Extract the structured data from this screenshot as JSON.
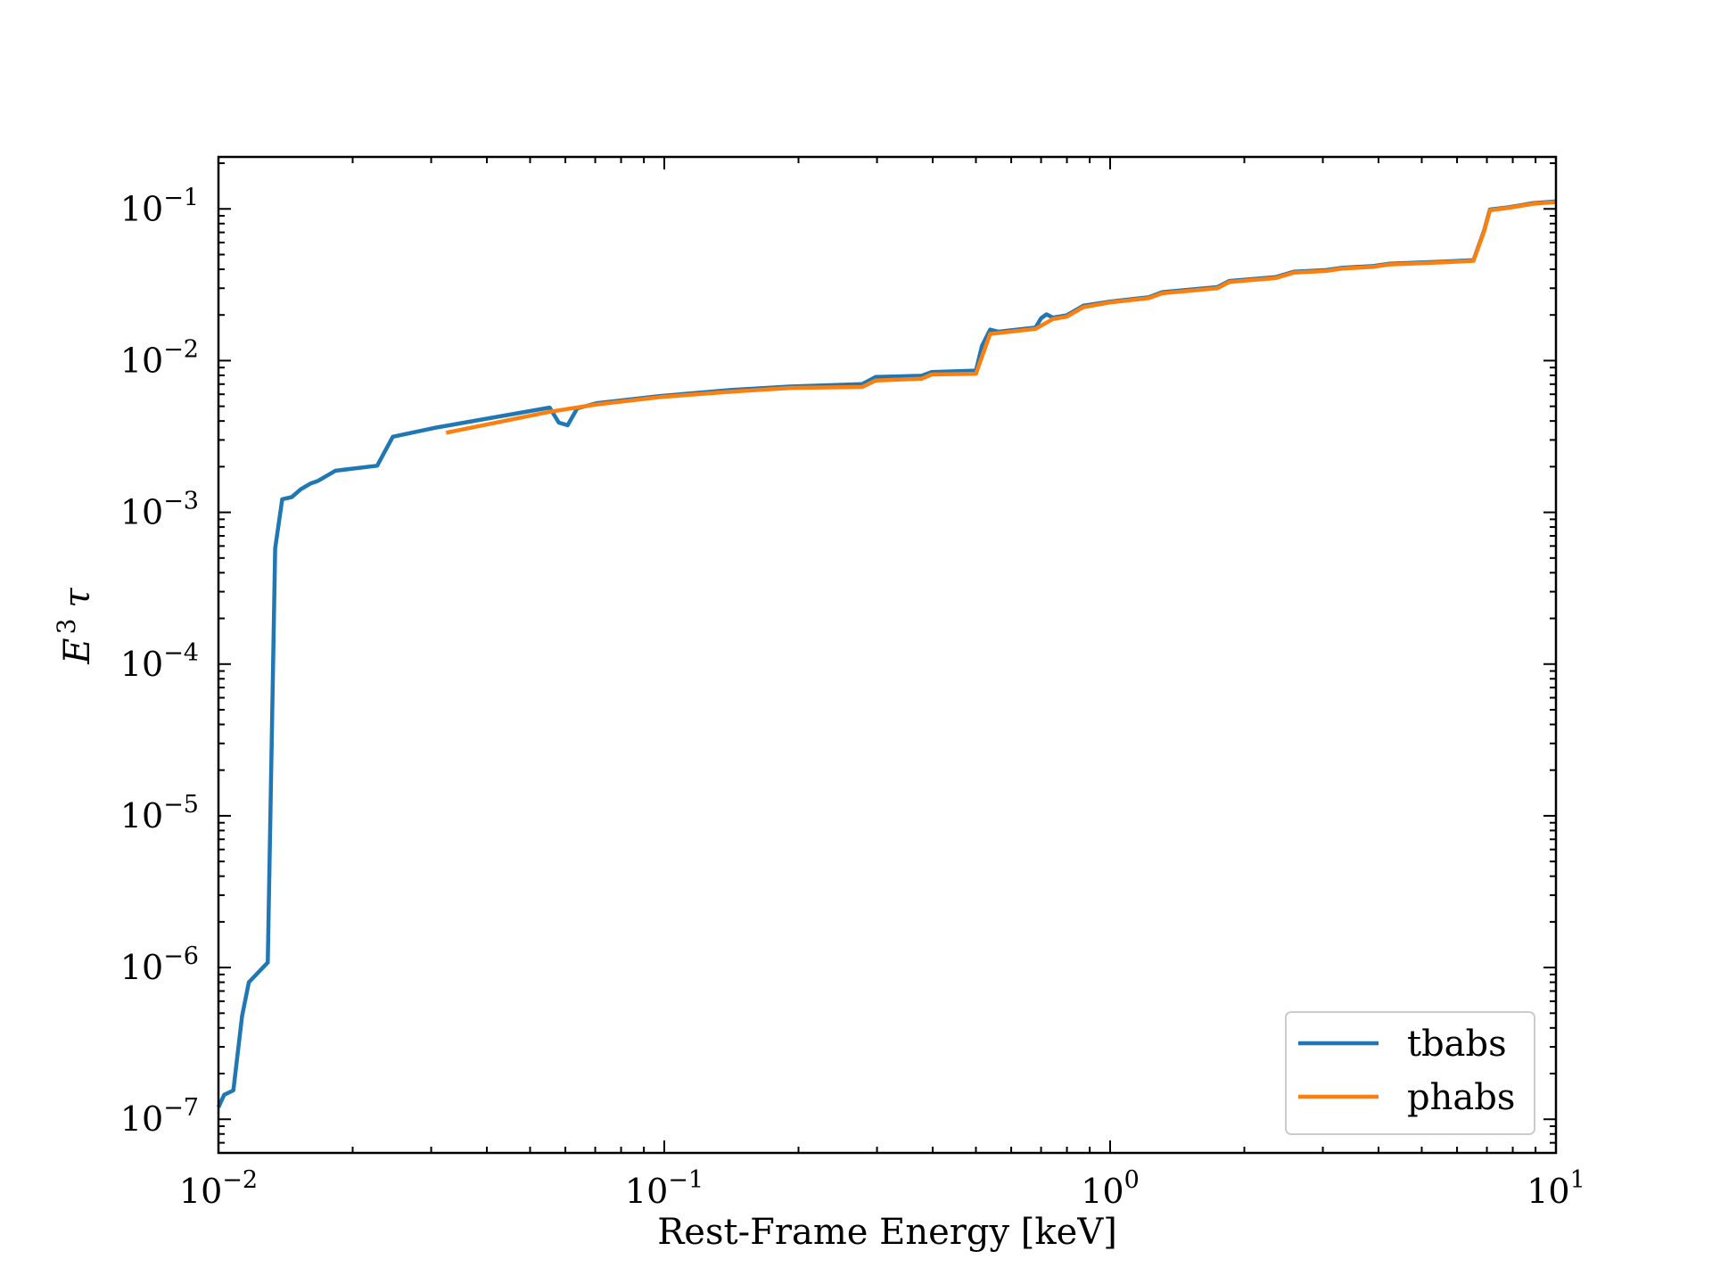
{
  "chart_data": {
    "type": "line",
    "xscale": "log",
    "yscale": "log",
    "xlim": [
      0.01,
      10
    ],
    "ylim": [
      6e-08,
      0.22
    ],
    "xlabel": "Rest-Frame Energy [keV]",
    "ylabel": "E³ τ",
    "ylabel_base": "E",
    "ylabel_exp": "3",
    "ylabel_tau": "τ",
    "x_ticks": [
      {
        "value": 0.01,
        "base": "10",
        "exp": "−2"
      },
      {
        "value": 0.1,
        "base": "10",
        "exp": "−1"
      },
      {
        "value": 1,
        "base": "10",
        "exp": "0"
      },
      {
        "value": 10,
        "base": "10",
        "exp": "1"
      }
    ],
    "y_ticks": [
      {
        "value": 1e-07,
        "base": "10",
        "exp": "−7"
      },
      {
        "value": 1e-06,
        "base": "10",
        "exp": "−6"
      },
      {
        "value": 1e-05,
        "base": "10",
        "exp": "−5"
      },
      {
        "value": 0.0001,
        "base": "10",
        "exp": "−4"
      },
      {
        "value": 0.001,
        "base": "10",
        "exp": "−3"
      },
      {
        "value": 0.01,
        "base": "10",
        "exp": "−2"
      },
      {
        "value": 0.1,
        "base": "10",
        "exp": "−1"
      }
    ],
    "grid": false,
    "legend": "lower-right",
    "series": [
      {
        "name": "tbabs",
        "color": "#1f77b4",
        "x": [
          0.01,
          0.0103,
          0.0108,
          0.0113,
          0.0117,
          0.0129,
          0.0134,
          0.0139,
          0.0146,
          0.0153,
          0.0161,
          0.0167,
          0.0183,
          0.0227,
          0.0246,
          0.0305,
          0.0553,
          0.058,
          0.0607,
          0.0638,
          0.0707,
          0.098,
          0.141,
          0.191,
          0.278,
          0.298,
          0.378,
          0.398,
          0.5,
          0.516,
          0.538,
          0.562,
          0.68,
          0.7,
          0.72,
          0.744,
          0.8,
          0.87,
          1.0,
          1.22,
          1.31,
          1.74,
          1.85,
          2.35,
          2.58,
          3.05,
          3.32,
          3.89,
          4.22,
          5.66,
          6.53,
          6.9,
          7.11,
          7.72,
          8.23,
          8.85,
          10.0
        ],
        "y": [
          1.2e-07,
          1.45e-07,
          1.55e-07,
          4.8e-07,
          8e-07,
          1.08e-06,
          0.00058,
          0.00122,
          0.00126,
          0.00142,
          0.00155,
          0.00161,
          0.00188,
          0.00203,
          0.00315,
          0.0036,
          0.0049,
          0.0039,
          0.00375,
          0.00485,
          0.00525,
          0.00585,
          0.0064,
          0.00675,
          0.007,
          0.0078,
          0.00795,
          0.0084,
          0.0086,
          0.0125,
          0.016,
          0.0155,
          0.0165,
          0.019,
          0.0202,
          0.0192,
          0.0199,
          0.023,
          0.0245,
          0.0262,
          0.0283,
          0.0305,
          0.0335,
          0.0355,
          0.0385,
          0.0395,
          0.041,
          0.042,
          0.0435,
          0.045,
          0.046,
          0.072,
          0.099,
          0.102,
          0.105,
          0.109,
          0.112
        ]
      },
      {
        "name": "phabs",
        "color": "#ff7f0e",
        "x": [
          0.0324,
          0.0553,
          0.0707,
          0.098,
          0.141,
          0.191,
          0.278,
          0.298,
          0.378,
          0.398,
          0.5,
          0.538,
          0.68,
          0.72,
          0.744,
          0.8,
          0.87,
          1.0,
          1.22,
          1.31,
          1.74,
          1.85,
          2.35,
          2.58,
          3.05,
          3.32,
          3.89,
          4.22,
          5.66,
          6.53,
          6.9,
          7.11,
          7.72,
          8.23,
          8.85,
          10.0
        ],
        "y": [
          0.00335,
          0.0046,
          0.00515,
          0.00575,
          0.00625,
          0.0066,
          0.0067,
          0.0074,
          0.0076,
          0.0081,
          0.0082,
          0.015,
          0.0162,
          0.0178,
          0.0188,
          0.0195,
          0.0225,
          0.0242,
          0.0258,
          0.0278,
          0.03,
          0.033,
          0.035,
          0.038,
          0.039,
          0.0405,
          0.0415,
          0.043,
          0.0445,
          0.0455,
          0.071,
          0.098,
          0.101,
          0.104,
          0.108,
          0.111
        ]
      }
    ]
  }
}
